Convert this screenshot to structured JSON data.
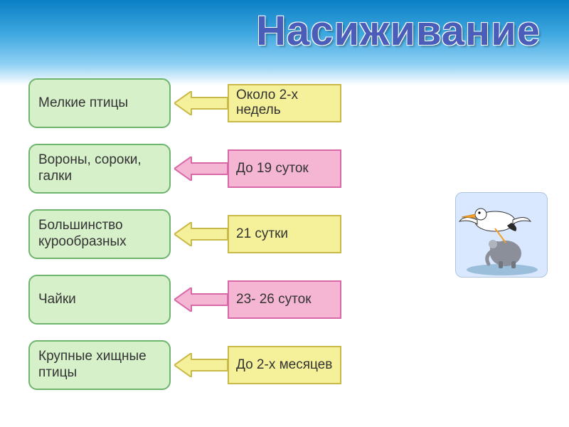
{
  "title": "Насиживание",
  "colors": {
    "green_fill": "#d6f0ca",
    "green_stroke": "#6db56d",
    "yellow_fill": "#f5f09a",
    "yellow_stroke": "#c9b94a",
    "pink_fill": "#f5b6d4",
    "pink_stroke": "#d968a8",
    "text": "#333333"
  },
  "rows": [
    {
      "left": "Мелкие птицы",
      "right": "Около 2-х недель",
      "arrow_fill_key": "yellow_fill",
      "arrow_stroke_key": "yellow_stroke",
      "right_fill_key": "yellow_fill",
      "right_stroke_key": "yellow_stroke"
    },
    {
      "left": "Вороны, сороки, галки",
      "right": "До 19 суток",
      "arrow_fill_key": "pink_fill",
      "arrow_stroke_key": "pink_stroke",
      "right_fill_key": "pink_fill",
      "right_stroke_key": "pink_stroke"
    },
    {
      "left": "Большинство курообразных",
      "right": "21 сутки",
      "arrow_fill_key": "yellow_fill",
      "arrow_stroke_key": "yellow_stroke",
      "right_fill_key": "yellow_fill",
      "right_stroke_key": "yellow_stroke"
    },
    {
      "left": "Чайки",
      "right": "23- 26 суток",
      "arrow_fill_key": "pink_fill",
      "arrow_stroke_key": "pink_stroke",
      "right_fill_key": "pink_fill",
      "right_stroke_key": "pink_stroke"
    },
    {
      "left": "Крупные хищные птицы",
      "right": "До 2-х месяцев",
      "arrow_fill_key": "yellow_fill",
      "arrow_stroke_key": "yellow_stroke",
      "right_fill_key": "yellow_fill",
      "right_stroke_key": "yellow_stroke"
    }
  ]
}
